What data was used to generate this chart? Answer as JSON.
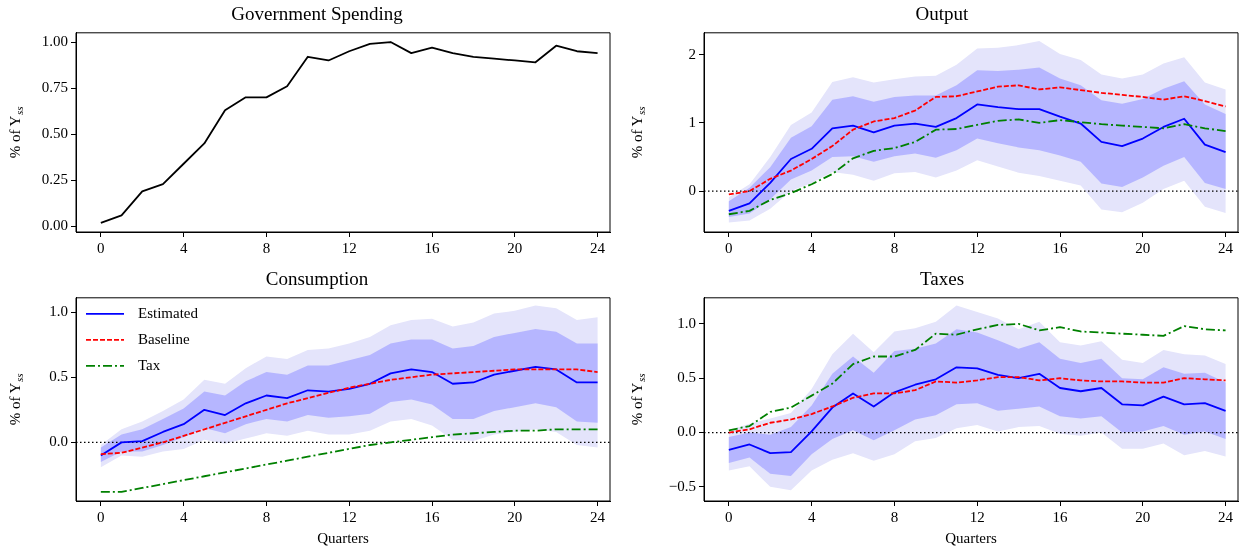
{
  "chart_data": [
    {
      "type": "line",
      "title": "Government Spending",
      "ylabel": "% of Y$_{ss}$",
      "x": [
        0,
        1,
        2,
        3,
        4,
        5,
        6,
        7,
        8,
        9,
        10,
        11,
        12,
        13,
        14,
        15,
        16,
        17,
        18,
        19,
        20,
        21,
        22,
        23,
        24
      ],
      "xlim": [
        -1.2,
        24.6
      ],
      "xticks": [
        0,
        4,
        8,
        12,
        16,
        20,
        24
      ],
      "ylim": [
        -0.03,
        1.05
      ],
      "yticks": [
        {
          "value": 0,
          "label": "0.00"
        },
        {
          "value": 0.25,
          "label": "0.25"
        },
        {
          "value": 0.5,
          "label": "0.50"
        },
        {
          "value": 0.75,
          "label": "0.75"
        },
        {
          "value": 1,
          "label": "1.00"
        }
      ],
      "grid": false,
      "legend": false,
      "marker": "none",
      "series": [
        {
          "color": "#000000",
          "line_style": "solid",
          "values": [
            0.02,
            0.06,
            0.19,
            0.23,
            0.34,
            0.45,
            0.63,
            0.7,
            0.7,
            0.76,
            0.92,
            0.9,
            0.95,
            0.99,
            1.0,
            0.94,
            0.97,
            0.94,
            0.92,
            0.91,
            0.9,
            0.89,
            0.98,
            0.95,
            0.94
          ]
        }
      ]
    },
    {
      "type": "line",
      "title": "Output",
      "ylabel": "% of Y$_{ss}$",
      "x": [
        0,
        1,
        2,
        3,
        4,
        5,
        6,
        7,
        8,
        9,
        10,
        11,
        12,
        13,
        14,
        15,
        16,
        17,
        18,
        19,
        20,
        21,
        22,
        23,
        24
      ],
      "xlim": [
        -1.2,
        24.6
      ],
      "xticks": [
        0,
        4,
        8,
        12,
        16,
        20,
        24
      ],
      "ylim": [
        -0.6,
        2.32
      ],
      "yticks": [
        0,
        1,
        2
      ],
      "grid": false,
      "legend": false,
      "marker": "none",
      "ref_lines": [
        {
          "axis": "y",
          "value": 0,
          "color": "#000000",
          "line_style": "dotted"
        }
      ],
      "series": [
        {
          "color": "#e4e4fb",
          "values": [
            null,
            null,
            null,
            null,
            null,
            null,
            null,
            null,
            null,
            null,
            null,
            null,
            null,
            null,
            null,
            null,
            null,
            null,
            null,
            null,
            null,
            null,
            null,
            null,
            null
          ],
          "lower": [
            -0.46,
            -0.43,
            -0.26,
            0.0,
            0.12,
            0.28,
            0.24,
            0.15,
            0.26,
            0.28,
            0.2,
            0.3,
            0.45,
            0.36,
            0.27,
            0.22,
            0.15,
            0.08,
            -0.27,
            -0.31,
            -0.17,
            0.03,
            0.15,
            -0.23,
            -0.32
          ],
          "upper": [
            -0.09,
            0.1,
            0.5,
            0.97,
            1.15,
            1.6,
            1.67,
            1.59,
            1.64,
            1.68,
            1.69,
            1.85,
            2.09,
            2.1,
            2.14,
            2.2,
            2.01,
            1.92,
            1.71,
            1.65,
            1.71,
            1.87,
            1.96,
            1.59,
            1.49
          ]
        },
        {
          "color": "#0000ff",
          "line_style": "solid",
          "values": [
            -0.29,
            -0.18,
            0.12,
            0.47,
            0.62,
            0.92,
            0.96,
            0.86,
            0.96,
            0.99,
            0.94,
            1.07,
            1.27,
            1.23,
            1.2,
            1.2,
            1.09,
            0.99,
            0.72,
            0.66,
            0.77,
            0.94,
            1.06,
            0.68,
            0.57
          ],
          "lower": [
            -0.38,
            -0.33,
            -0.12,
            0.17,
            0.3,
            0.5,
            0.51,
            0.43,
            0.51,
            0.55,
            0.49,
            0.6,
            0.77,
            0.7,
            0.64,
            0.6,
            0.52,
            0.43,
            0.11,
            0.06,
            0.2,
            0.37,
            0.5,
            0.12,
            0.03
          ],
          "upper": [
            -0.15,
            0.05,
            0.35,
            0.78,
            0.95,
            1.34,
            1.39,
            1.31,
            1.38,
            1.4,
            1.4,
            1.55,
            1.77,
            1.76,
            1.78,
            1.81,
            1.65,
            1.55,
            1.33,
            1.28,
            1.35,
            1.5,
            1.61,
            1.27,
            1.13
          ]
        },
        {
          "color": "#ff0000",
          "line_style": "dashed",
          "values": [
            -0.05,
            0.0,
            0.18,
            0.3,
            0.47,
            0.66,
            0.9,
            1.02,
            1.07,
            1.18,
            1.38,
            1.39,
            1.46,
            1.53,
            1.55,
            1.49,
            1.52,
            1.48,
            1.44,
            1.41,
            1.38,
            1.34,
            1.39,
            1.32,
            1.24
          ]
        },
        {
          "color": "#008000",
          "line_style": "dashdot",
          "values": [
            -0.34,
            -0.29,
            -0.13,
            -0.03,
            0.1,
            0.25,
            0.48,
            0.59,
            0.63,
            0.72,
            0.9,
            0.91,
            0.97,
            1.03,
            1.05,
            1.0,
            1.04,
            1.01,
            0.98,
            0.96,
            0.94,
            0.92,
            0.98,
            0.92,
            0.88
          ]
        }
      ]
    },
    {
      "type": "line",
      "title": "Consumption",
      "xlabel": "Quarters",
      "ylabel": "% of Y$_{ss}$",
      "x": [
        0,
        1,
        2,
        3,
        4,
        5,
        6,
        7,
        8,
        9,
        10,
        11,
        12,
        13,
        14,
        15,
        16,
        17,
        18,
        19,
        20,
        21,
        22,
        23,
        24
      ],
      "xlim": [
        -1.2,
        24.6
      ],
      "xticks": [
        0,
        4,
        8,
        12,
        16,
        20,
        24
      ],
      "ylim": [
        -0.45,
        1.11
      ],
      "yticks": [
        {
          "value": 0,
          "label": "0.0"
        },
        {
          "value": 0.5,
          "label": "0.5"
        },
        {
          "value": 1,
          "label": "1.0"
        }
      ],
      "grid": false,
      "legend": "top left",
      "marker": "none",
      "ref_lines": [
        {
          "axis": "y",
          "value": 0,
          "color": "#000000",
          "line_style": "dotted"
        }
      ],
      "series": [
        {
          "color": "#e4e4fb",
          "values": [
            null,
            null,
            null,
            null,
            null,
            null,
            null,
            null,
            null,
            null,
            null,
            null,
            null,
            null,
            null,
            null,
            null,
            null,
            null,
            null,
            null,
            null,
            null,
            null,
            null
          ],
          "lower": [
            -0.19,
            -0.1,
            -0.11,
            -0.07,
            -0.05,
            0.02,
            -0.01,
            0.03,
            0.07,
            0.05,
            0.09,
            0.06,
            0.06,
            0.09,
            0.16,
            0.18,
            0.13,
            0.02,
            0.01,
            0.06,
            0.08,
            0.1,
            0.08,
            -0.02,
            -0.04
          ],
          "upper": [
            -0.02,
            0.1,
            0.16,
            0.24,
            0.33,
            0.48,
            0.45,
            0.57,
            0.66,
            0.64,
            0.71,
            0.72,
            0.76,
            0.81,
            0.9,
            0.94,
            0.95,
            0.89,
            0.92,
            0.99,
            1.01,
            1.05,
            1.03,
            0.94,
            0.96
          ]
        },
        {
          "name": "Estimated",
          "color": "#0000ff",
          "line_style": "solid",
          "values": [
            -0.1,
            0.0,
            0.01,
            0.08,
            0.14,
            0.25,
            0.21,
            0.3,
            0.36,
            0.34,
            0.4,
            0.39,
            0.41,
            0.45,
            0.53,
            0.56,
            0.54,
            0.45,
            0.46,
            0.52,
            0.55,
            0.58,
            0.56,
            0.46,
            0.46
          ],
          "lower": [
            -0.15,
            -0.07,
            -0.07,
            -0.02,
            0.04,
            0.11,
            0.07,
            0.14,
            0.18,
            0.16,
            0.21,
            0.19,
            0.2,
            0.22,
            0.31,
            0.33,
            0.29,
            0.18,
            0.18,
            0.24,
            0.27,
            0.3,
            0.27,
            0.16,
            0.15
          ],
          "upper": [
            -0.04,
            0.06,
            0.1,
            0.18,
            0.26,
            0.39,
            0.36,
            0.47,
            0.54,
            0.52,
            0.59,
            0.59,
            0.63,
            0.67,
            0.76,
            0.79,
            0.79,
            0.72,
            0.74,
            0.81,
            0.84,
            0.87,
            0.85,
            0.76,
            0.76
          ]
        },
        {
          "name": "Baseline",
          "color": "#ff0000",
          "line_style": "dashed",
          "values": [
            -0.09,
            -0.08,
            -0.04,
            0.0,
            0.05,
            0.1,
            0.15,
            0.2,
            0.25,
            0.3,
            0.34,
            0.38,
            0.42,
            0.45,
            0.48,
            0.5,
            0.52,
            0.53,
            0.54,
            0.55,
            0.56,
            0.56,
            0.56,
            0.56,
            0.54
          ]
        },
        {
          "name": "Tax",
          "color": "#008000",
          "line_style": "dashdot",
          "values": [
            -0.38,
            -0.38,
            -0.35,
            -0.32,
            -0.29,
            -0.26,
            -0.23,
            -0.2,
            -0.17,
            -0.14,
            -0.11,
            -0.08,
            -0.05,
            -0.02,
            0.0,
            0.02,
            0.04,
            0.06,
            0.07,
            0.08,
            0.09,
            0.09,
            0.1,
            0.1,
            0.1
          ]
        }
      ]
    },
    {
      "type": "line",
      "title": "Taxes",
      "xlabel": "Quarters",
      "ylabel": "% of Y$_{ss}$",
      "x": [
        0,
        1,
        2,
        3,
        4,
        5,
        6,
        7,
        8,
        9,
        10,
        11,
        12,
        13,
        14,
        15,
        16,
        17,
        18,
        19,
        20,
        21,
        22,
        23,
        24
      ],
      "xlim": [
        -1.2,
        24.6
      ],
      "xticks": [
        0,
        4,
        8,
        12,
        16,
        20,
        24
      ],
      "ylim": [
        -0.63,
        1.24
      ],
      "yticks": [
        {
          "value": -0.5,
          "label": "−0.5"
        },
        {
          "value": 0,
          "label": "0.0"
        },
        {
          "value": 0.5,
          "label": "0.5"
        },
        {
          "value": 1,
          "label": "1.0"
        }
      ],
      "grid": false,
      "legend": false,
      "marker": "none",
      "ref_lines": [
        {
          "axis": "y",
          "value": 0,
          "color": "#000000",
          "line_style": "dotted"
        }
      ],
      "series": [
        {
          "color": "#e4e4fb",
          "values": [
            null,
            null,
            null,
            null,
            null,
            null,
            null,
            null,
            null,
            null,
            null,
            null,
            null,
            null,
            null,
            null,
            null,
            null,
            null,
            null,
            null,
            null,
            null,
            null,
            null
          ],
          "lower": [
            -0.35,
            -0.31,
            -0.5,
            -0.53,
            -0.35,
            -0.25,
            -0.19,
            -0.26,
            -0.2,
            -0.08,
            -0.05,
            0.04,
            0.07,
            0.01,
            0.05,
            0.06,
            -0.01,
            -0.03,
            0.0,
            -0.15,
            -0.15,
            -0.1,
            -0.21,
            -0.17,
            -0.22
          ],
          "upper": [
            0.02,
            0.08,
            0.13,
            0.18,
            0.4,
            0.72,
            0.91,
            0.74,
            0.93,
            0.96,
            1.02,
            1.17,
            1.11,
            1.05,
            0.95,
            1.02,
            0.83,
            0.8,
            0.84,
            0.67,
            0.64,
            0.76,
            0.72,
            0.71,
            0.63
          ]
        },
        {
          "color": "#0000ff",
          "line_style": "solid",
          "values": [
            -0.16,
            -0.11,
            -0.19,
            -0.18,
            0.01,
            0.23,
            0.36,
            0.24,
            0.37,
            0.44,
            0.49,
            0.6,
            0.59,
            0.53,
            0.5,
            0.54,
            0.41,
            0.38,
            0.41,
            0.26,
            0.25,
            0.33,
            0.26,
            0.27,
            0.2
          ],
          "lower": [
            -0.28,
            -0.23,
            -0.38,
            -0.4,
            -0.2,
            -0.06,
            0.02,
            -0.07,
            0.02,
            0.12,
            0.16,
            0.26,
            0.27,
            0.2,
            0.22,
            0.24,
            0.15,
            0.13,
            0.15,
            0.0,
            0.01,
            0.06,
            -0.02,
            0.01,
            -0.06
          ],
          "upper": [
            -0.04,
            0.0,
            -0.02,
            0.05,
            0.25,
            0.54,
            0.7,
            0.55,
            0.75,
            0.77,
            0.82,
            0.95,
            0.92,
            0.85,
            0.77,
            0.83,
            0.68,
            0.64,
            0.68,
            0.5,
            0.49,
            0.6,
            0.54,
            0.55,
            0.46
          ]
        },
        {
          "color": "#ff0000",
          "line_style": "dashed",
          "values": [
            0.0,
            0.03,
            0.09,
            0.12,
            0.17,
            0.24,
            0.32,
            0.36,
            0.36,
            0.39,
            0.47,
            0.46,
            0.48,
            0.51,
            0.51,
            0.48,
            0.5,
            0.48,
            0.47,
            0.47,
            0.46,
            0.46,
            0.5,
            0.49,
            0.48
          ]
        },
        {
          "color": "#008000",
          "line_style": "dashdot",
          "values": [
            0.02,
            0.06,
            0.19,
            0.23,
            0.34,
            0.45,
            0.63,
            0.7,
            0.7,
            0.76,
            0.91,
            0.9,
            0.95,
            0.99,
            1.0,
            0.94,
            0.97,
            0.93,
            0.92,
            0.91,
            0.9,
            0.89,
            0.98,
            0.95,
            0.94
          ]
        }
      ]
    }
  ]
}
